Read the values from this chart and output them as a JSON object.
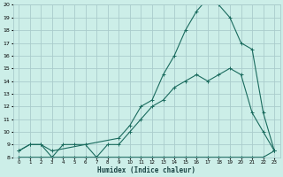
{
  "xlabel": "Humidex (Indice chaleur)",
  "bg_color": "#cceee8",
  "grid_color": "#aacccc",
  "line_color": "#1a6b5e",
  "xlim": [
    -0.5,
    23.5
  ],
  "ylim": [
    8,
    20
  ],
  "xticks": [
    0,
    1,
    2,
    3,
    4,
    5,
    6,
    7,
    8,
    9,
    10,
    11,
    12,
    13,
    14,
    15,
    16,
    17,
    18,
    19,
    20,
    21,
    22,
    23
  ],
  "yticks": [
    8,
    9,
    10,
    11,
    12,
    13,
    14,
    15,
    16,
    17,
    18,
    19,
    20
  ],
  "line1_x": [
    0,
    1,
    2,
    3,
    4,
    5,
    6,
    7,
    8,
    9,
    10,
    11,
    12,
    13,
    14,
    15,
    16,
    17,
    18,
    19,
    20,
    21,
    22,
    23
  ],
  "line1_y": [
    8.0,
    8.0,
    8.0,
    8.0,
    8.0,
    8.0,
    8.0,
    8.0,
    8.0,
    8.0,
    8.0,
    8.0,
    8.0,
    8.0,
    8.0,
    8.0,
    8.0,
    8.0,
    8.0,
    8.0,
    8.0,
    8.0,
    8.0,
    8.5
  ],
  "line2_x": [
    0,
    1,
    2,
    3,
    4,
    5,
    6,
    7,
    8,
    9,
    10,
    11,
    12,
    13,
    14,
    15,
    16,
    17,
    18,
    19,
    20,
    21,
    22,
    23
  ],
  "line2_y": [
    8.5,
    9.0,
    9.0,
    8.0,
    9.0,
    9.0,
    9.0,
    8.0,
    9.0,
    9.0,
    10.0,
    11.0,
    12.0,
    12.5,
    13.5,
    14.0,
    14.5,
    14.0,
    14.5,
    15.0,
    14.5,
    11.5,
    10.0,
    8.5
  ],
  "line3_x": [
    0,
    1,
    2,
    3,
    9,
    10,
    11,
    12,
    13,
    14,
    15,
    16,
    17,
    18,
    19,
    20,
    21,
    22,
    23
  ],
  "line3_y": [
    8.5,
    9.0,
    9.0,
    8.5,
    9.5,
    10.5,
    12.0,
    12.5,
    14.5,
    16.0,
    18.0,
    19.5,
    20.5,
    20.0,
    19.0,
    17.0,
    16.5,
    11.5,
    8.5
  ]
}
